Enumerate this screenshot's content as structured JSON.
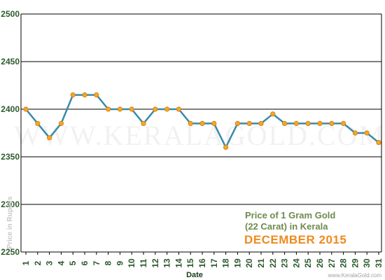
{
  "chart_data": {
    "type": "line",
    "title_line1": "Price of 1 Gram Gold",
    "title_line2": "(22 Carat) in Kerala",
    "subtitle": "DECEMBER 2015",
    "xlabel": "Date",
    "ylabel": "Price in Rupees",
    "watermark": "WWW.KERALAGOLD.COM",
    "site_credit": "www.KeralaGold.com",
    "ylim": [
      2250,
      2500
    ],
    "yticks": [
      2250,
      2300,
      2350,
      2400,
      2450,
      2500
    ],
    "grid": true,
    "x": [
      1,
      2,
      3,
      4,
      5,
      6,
      7,
      8,
      9,
      10,
      11,
      12,
      13,
      14,
      15,
      16,
      17,
      18,
      19,
      20,
      21,
      22,
      23,
      24,
      25,
      26,
      27,
      28,
      29,
      30,
      31
    ],
    "values": [
      2400,
      2385,
      2370,
      2385,
      2415,
      2415,
      2415,
      2400,
      2400,
      2400,
      2385,
      2400,
      2400,
      2400,
      2385,
      2385,
      2385,
      2360,
      2385,
      2385,
      2385,
      2395,
      2385,
      2385,
      2385,
      2385,
      2385,
      2385,
      2375,
      2375,
      2365
    ],
    "colors": {
      "line": "#3a8aa8",
      "marker": "#f5a623",
      "marker_stroke": "#d07a10",
      "grid": "#000000"
    }
  }
}
